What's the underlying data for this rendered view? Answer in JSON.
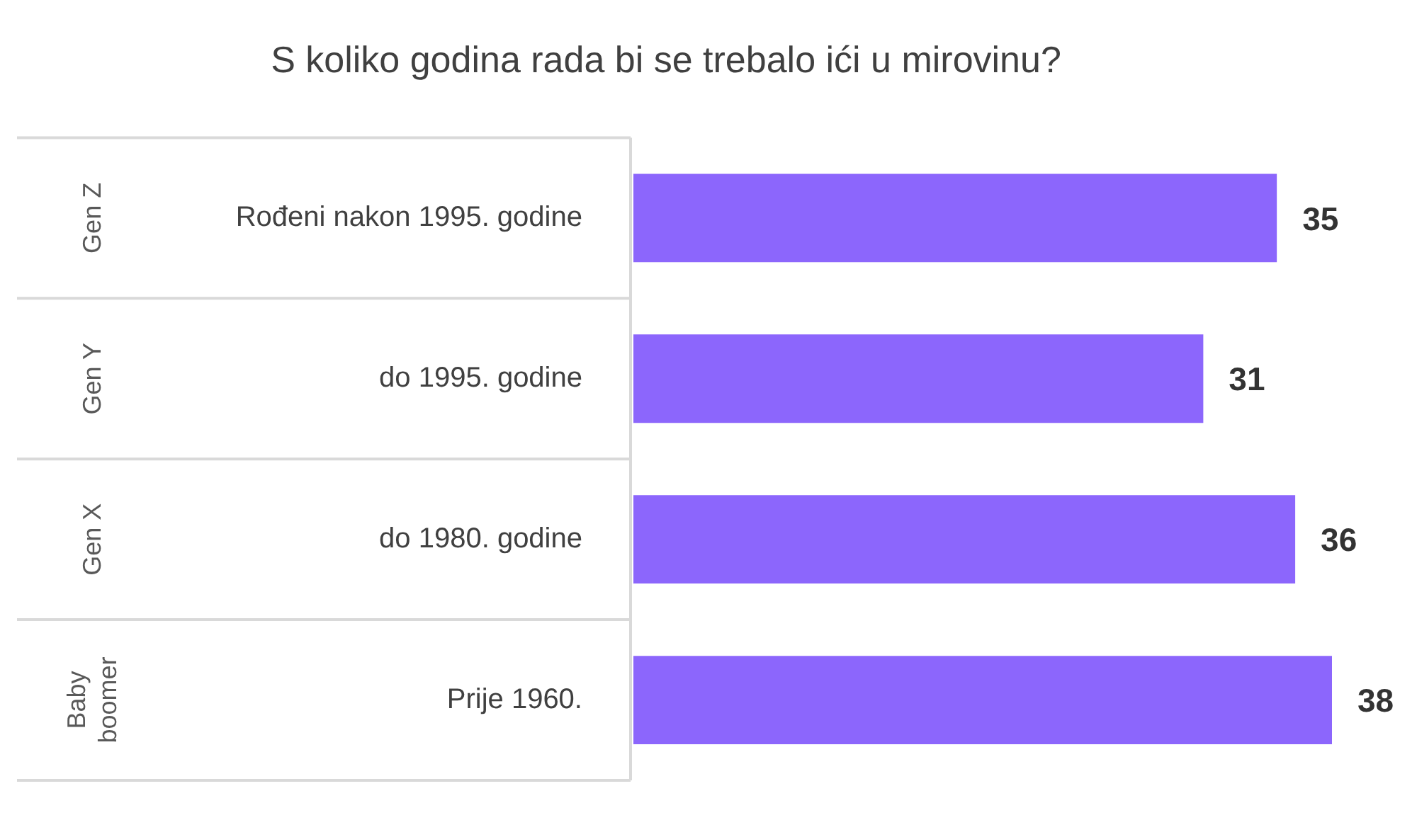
{
  "chart_data": {
    "type": "bar",
    "orientation": "horizontal",
    "title": "S koliko godina rada bi se trebalo ići u mirovinu?",
    "categories": [
      "Rođeni nakon 1995. godine",
      "do 1995. godine",
      "do 1980. godine",
      "Prije 1960."
    ],
    "values": [
      35,
      31,
      36,
      38
    ],
    "color": "#8c66fc",
    "data_labels": true,
    "annotations": [
      "Gen Z",
      "Gen Y",
      "Gen X",
      "Baby boomer"
    ]
  }
}
